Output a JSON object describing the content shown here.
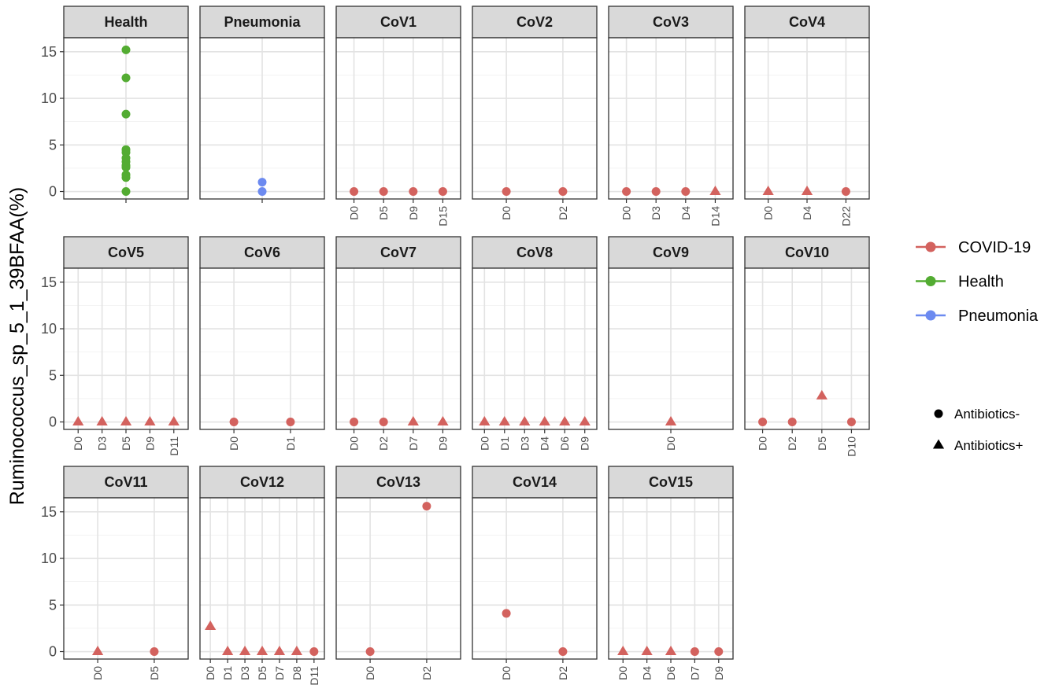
{
  "chart_data": {
    "type": "scatter",
    "ylabel": "Ruminococcus_sp_5_1_39BFAA(%)",
    "y_ticks": [
      0,
      5,
      10,
      15
    ],
    "ylim": [
      -0.8,
      16.5
    ],
    "layout": "facet-wrap-3-rows-6-cols",
    "colors": {
      "COVID-19": "#D3625E",
      "Health": "#53AC32",
      "Pneumonia": "#6C8AF0"
    },
    "legend": {
      "color_entries": [
        "COVID-19",
        "Health",
        "Pneumonia"
      ],
      "shape_entries": [
        {
          "label": "Antibiotics-",
          "shape": "circle"
        },
        {
          "label": "Antibiotics+",
          "shape": "triangle"
        }
      ],
      "placement": "right"
    },
    "panels": [
      {
        "title": "Health",
        "group": "Health",
        "categories": [
          ""
        ],
        "points": [
          {
            "x": "",
            "y": 15.2,
            "shape": "circle"
          },
          {
            "x": "",
            "y": 12.2,
            "shape": "circle"
          },
          {
            "x": "",
            "y": 8.3,
            "shape": "circle"
          },
          {
            "x": "",
            "y": 4.5,
            "shape": "circle"
          },
          {
            "x": "",
            "y": 4.2,
            "shape": "circle"
          },
          {
            "x": "",
            "y": 3.6,
            "shape": "circle"
          },
          {
            "x": "",
            "y": 3.2,
            "shape": "circle"
          },
          {
            "x": "",
            "y": 2.8,
            "shape": "circle"
          },
          {
            "x": "",
            "y": 2.6,
            "shape": "circle"
          },
          {
            "x": "",
            "y": 1.8,
            "shape": "circle"
          },
          {
            "x": "",
            "y": 1.5,
            "shape": "circle"
          },
          {
            "x": "",
            "y": 0.0,
            "shape": "circle"
          }
        ]
      },
      {
        "title": "Pneumonia",
        "group": "Pneumonia",
        "categories": [
          ""
        ],
        "points": [
          {
            "x": "",
            "y": 1.0,
            "shape": "circle"
          },
          {
            "x": "",
            "y": 0.0,
            "shape": "circle"
          }
        ]
      },
      {
        "title": "CoV1",
        "group": "COVID-19",
        "categories": [
          "D0",
          "D5",
          "D9",
          "D15"
        ],
        "points": [
          {
            "x": "D0",
            "y": 0,
            "shape": "circle"
          },
          {
            "x": "D5",
            "y": 0,
            "shape": "circle"
          },
          {
            "x": "D9",
            "y": 0,
            "shape": "circle"
          },
          {
            "x": "D15",
            "y": 0,
            "shape": "circle"
          }
        ]
      },
      {
        "title": "CoV2",
        "group": "COVID-19",
        "categories": [
          "D0",
          "D2"
        ],
        "points": [
          {
            "x": "D0",
            "y": 0,
            "shape": "circle"
          },
          {
            "x": "D2",
            "y": 0,
            "shape": "circle"
          }
        ]
      },
      {
        "title": "CoV3",
        "group": "COVID-19",
        "categories": [
          "D0",
          "D3",
          "D4",
          "D14"
        ],
        "points": [
          {
            "x": "D0",
            "y": 0,
            "shape": "circle"
          },
          {
            "x": "D3",
            "y": 0,
            "shape": "circle"
          },
          {
            "x": "D4",
            "y": 0,
            "shape": "circle"
          },
          {
            "x": "D14",
            "y": 0,
            "shape": "triangle"
          }
        ]
      },
      {
        "title": "CoV4",
        "group": "COVID-19",
        "categories": [
          "D0",
          "D4",
          "D22"
        ],
        "points": [
          {
            "x": "D0",
            "y": 0,
            "shape": "triangle"
          },
          {
            "x": "D4",
            "y": 0,
            "shape": "triangle"
          },
          {
            "x": "D22",
            "y": 0,
            "shape": "circle"
          }
        ]
      },
      {
        "title": "CoV5",
        "group": "COVID-19",
        "categories": [
          "D0",
          "D3",
          "D5",
          "D9",
          "D11"
        ],
        "points": [
          {
            "x": "D0",
            "y": 0,
            "shape": "triangle"
          },
          {
            "x": "D3",
            "y": 0,
            "shape": "triangle"
          },
          {
            "x": "D5",
            "y": 0,
            "shape": "triangle"
          },
          {
            "x": "D9",
            "y": 0,
            "shape": "triangle"
          },
          {
            "x": "D11",
            "y": 0,
            "shape": "triangle"
          }
        ]
      },
      {
        "title": "CoV6",
        "group": "COVID-19",
        "categories": [
          "D0",
          "D1"
        ],
        "points": [
          {
            "x": "D0",
            "y": 0,
            "shape": "circle"
          },
          {
            "x": "D1",
            "y": 0,
            "shape": "circle"
          }
        ]
      },
      {
        "title": "CoV7",
        "group": "COVID-19",
        "categories": [
          "D0",
          "D2",
          "D7",
          "D9"
        ],
        "points": [
          {
            "x": "D0",
            "y": 0,
            "shape": "circle"
          },
          {
            "x": "D2",
            "y": 0,
            "shape": "circle"
          },
          {
            "x": "D7",
            "y": 0,
            "shape": "triangle"
          },
          {
            "x": "D9",
            "y": 0,
            "shape": "triangle"
          }
        ]
      },
      {
        "title": "CoV8",
        "group": "COVID-19",
        "categories": [
          "D0",
          "D1",
          "D3",
          "D4",
          "D6",
          "D9"
        ],
        "points": [
          {
            "x": "D0",
            "y": 0,
            "shape": "triangle"
          },
          {
            "x": "D1",
            "y": 0,
            "shape": "triangle"
          },
          {
            "x": "D3",
            "y": 0,
            "shape": "triangle"
          },
          {
            "x": "D4",
            "y": 0,
            "shape": "triangle"
          },
          {
            "x": "D6",
            "y": 0,
            "shape": "triangle"
          },
          {
            "x": "D9",
            "y": 0,
            "shape": "triangle"
          }
        ]
      },
      {
        "title": "CoV9",
        "group": "COVID-19",
        "categories": [
          "D0"
        ],
        "points": [
          {
            "x": "D0",
            "y": 0,
            "shape": "triangle"
          }
        ]
      },
      {
        "title": "CoV10",
        "group": "COVID-19",
        "categories": [
          "D0",
          "D2",
          "D5",
          "D10"
        ],
        "points": [
          {
            "x": "D0",
            "y": 0,
            "shape": "circle"
          },
          {
            "x": "D2",
            "y": 0,
            "shape": "circle"
          },
          {
            "x": "D5",
            "y": 2.8,
            "shape": "triangle"
          },
          {
            "x": "D10",
            "y": 0,
            "shape": "circle"
          }
        ]
      },
      {
        "title": "CoV11",
        "group": "COVID-19",
        "categories": [
          "D0",
          "D5"
        ],
        "points": [
          {
            "x": "D0",
            "y": 0,
            "shape": "triangle"
          },
          {
            "x": "D5",
            "y": 0,
            "shape": "circle"
          }
        ]
      },
      {
        "title": "CoV12",
        "group": "COVID-19",
        "categories": [
          "D0",
          "D1",
          "D3",
          "D5",
          "D7",
          "D8",
          "D11"
        ],
        "points": [
          {
            "x": "D0",
            "y": 2.7,
            "shape": "triangle"
          },
          {
            "x": "D1",
            "y": 0,
            "shape": "triangle"
          },
          {
            "x": "D3",
            "y": 0,
            "shape": "triangle"
          },
          {
            "x": "D5",
            "y": 0,
            "shape": "triangle"
          },
          {
            "x": "D7",
            "y": 0,
            "shape": "triangle"
          },
          {
            "x": "D8",
            "y": 0,
            "shape": "triangle"
          },
          {
            "x": "D11",
            "y": 0,
            "shape": "circle"
          }
        ]
      },
      {
        "title": "CoV13",
        "group": "COVID-19",
        "categories": [
          "D0",
          "D2"
        ],
        "points": [
          {
            "x": "D0",
            "y": 0,
            "shape": "circle"
          },
          {
            "x": "D2",
            "y": 15.6,
            "shape": "circle"
          }
        ]
      },
      {
        "title": "CoV14",
        "group": "COVID-19",
        "categories": [
          "D0",
          "D2"
        ],
        "points": [
          {
            "x": "D0",
            "y": 4.1,
            "shape": "circle"
          },
          {
            "x": "D2",
            "y": 0,
            "shape": "circle"
          }
        ]
      },
      {
        "title": "CoV15",
        "group": "COVID-19",
        "categories": [
          "D0",
          "D4",
          "D6",
          "D7",
          "D9"
        ],
        "points": [
          {
            "x": "D0",
            "y": 0,
            "shape": "triangle"
          },
          {
            "x": "D4",
            "y": 0,
            "shape": "triangle"
          },
          {
            "x": "D6",
            "y": 0,
            "shape": "triangle"
          },
          {
            "x": "D7",
            "y": 0,
            "shape": "circle"
          },
          {
            "x": "D9",
            "y": 0,
            "shape": "circle"
          }
        ]
      }
    ]
  }
}
